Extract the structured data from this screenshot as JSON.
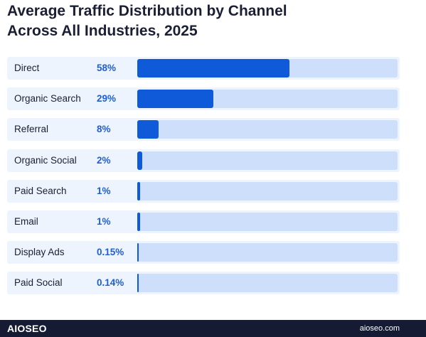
{
  "title_lines": [
    "Average Traffic Distribution by Channel",
    "Across All Industries, 2025"
  ],
  "chart_data": {
    "type": "bar",
    "orientation": "horizontal",
    "categories": [
      "Direct",
      "Organic Search",
      "Referral",
      "Organic Social",
      "Paid Search",
      "Email",
      "Display Ads",
      "Paid Social"
    ],
    "value_labels": [
      "58%",
      "29%",
      "8%",
      "2%",
      "1%",
      "1%",
      "0.15%",
      "0.14%"
    ],
    "values": [
      58,
      29,
      8,
      2,
      1,
      1,
      0.15,
      0.14
    ],
    "unit": "%",
    "xlim": [
      0,
      100
    ],
    "grid": false,
    "legend": "none",
    "colors": {
      "bar": "#0f5ad8",
      "track": "#cddffa",
      "row_bg": "#eef4fd",
      "value_text": "#1f5fd1"
    }
  },
  "footer": {
    "logo": "AIOSEO",
    "site": "aioseo.com",
    "background": "#141b33"
  }
}
